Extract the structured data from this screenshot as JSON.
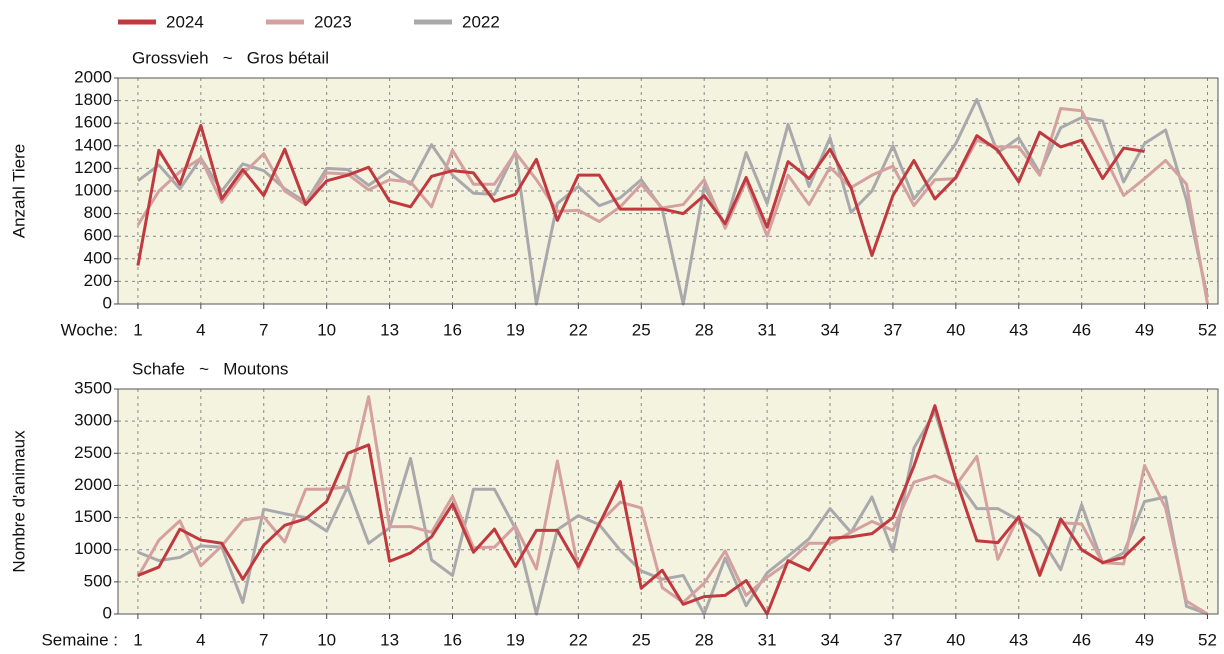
{
  "legend": [
    {
      "name": "2024",
      "color": "#c0393f"
    },
    {
      "name": "2023",
      "color": "#d4a0a0"
    },
    {
      "name": "2022",
      "color": "#a9a9ac"
    }
  ],
  "chart_data": [
    {
      "type": "line",
      "title": "Grossvieh   ~   Gros bétail",
      "y_label": "Anzahl Tiere",
      "x_label": "Woche:",
      "x": [
        1,
        2,
        3,
        4,
        5,
        6,
        7,
        8,
        9,
        10,
        11,
        12,
        13,
        14,
        15,
        16,
        17,
        18,
        19,
        20,
        21,
        22,
        23,
        24,
        25,
        26,
        27,
        28,
        29,
        30,
        31,
        32,
        33,
        34,
        35,
        36,
        37,
        38,
        39,
        40,
        41,
        42,
        43,
        44,
        45,
        46,
        47,
        48,
        49,
        50,
        51,
        52
      ],
      "xlim": [
        0.05,
        52.5
      ],
      "xticks": [
        1,
        4,
        7,
        10,
        13,
        16,
        19,
        22,
        25,
        28,
        31,
        34,
        37,
        40,
        43,
        46,
        49,
        52
      ],
      "ylim": [
        0,
        2000
      ],
      "yticks": [
        0,
        200,
        400,
        600,
        800,
        1000,
        1200,
        1400,
        1600,
        1800,
        2000
      ],
      "grid": true,
      "series": [
        {
          "name": "2024",
          "color": "#c0393f",
          "values": [
            340,
            1360,
            1060,
            1580,
            930,
            1190,
            960,
            1370,
            880,
            1090,
            1140,
            1210,
            910,
            860,
            1130,
            1180,
            1160,
            910,
            970,
            1280,
            740,
            1140,
            1140,
            840,
            840,
            840,
            800,
            960,
            710,
            1120,
            680,
            1260,
            1110,
            1370,
            1030,
            430,
            960,
            1270,
            930,
            1120,
            1490,
            1360,
            1080,
            1520,
            1390,
            1450,
            1110,
            1380,
            1350,
            null,
            null,
            null
          ]
        },
        {
          "name": "2023",
          "color": "#d4a0a0",
          "values": [
            700,
            1000,
            1170,
            1290,
            900,
            1150,
            1330,
            1000,
            880,
            1160,
            1150,
            1010,
            1100,
            1080,
            860,
            1360,
            1060,
            1060,
            1340,
            1100,
            820,
            830,
            730,
            860,
            1060,
            850,
            880,
            1100,
            670,
            1090,
            600,
            1140,
            880,
            1210,
            1030,
            1140,
            1220,
            870,
            1100,
            1110,
            1450,
            1390,
            1390,
            1140,
            1730,
            1710,
            1340,
            960,
            1110,
            1270,
            1060,
            0
          ]
        },
        {
          "name": "2022",
          "color": "#a9a9ac",
          "values": [
            1090,
            1230,
            1020,
            1290,
            1000,
            1240,
            1180,
            1020,
            900,
            1200,
            1190,
            1050,
            1180,
            1060,
            1410,
            1140,
            980,
            970,
            1350,
            0,
            890,
            1040,
            870,
            940,
            1100,
            840,
            0,
            1040,
            700,
            1340,
            890,
            1590,
            1040,
            1470,
            810,
            1000,
            1400,
            930,
            1160,
            1420,
            1810,
            1340,
            1470,
            1160,
            1560,
            1650,
            1620,
            1080,
            1420,
            1540,
            920,
            60
          ]
        }
      ]
    },
    {
      "type": "line",
      "title": "Schafe   ~   Moutons",
      "y_label": "Nombre d'animaux",
      "x_label": "Semaine :",
      "x": [
        1,
        2,
        3,
        4,
        5,
        6,
        7,
        8,
        9,
        10,
        11,
        12,
        13,
        14,
        15,
        16,
        17,
        18,
        19,
        20,
        21,
        22,
        23,
        24,
        25,
        26,
        27,
        28,
        29,
        30,
        31,
        32,
        33,
        34,
        35,
        36,
        37,
        38,
        39,
        40,
        41,
        42,
        43,
        44,
        45,
        46,
        47,
        48,
        49,
        50,
        51,
        52
      ],
      "xlim": [
        0.05,
        52.5
      ],
      "xticks": [
        1,
        4,
        7,
        10,
        13,
        16,
        19,
        22,
        25,
        28,
        31,
        34,
        37,
        40,
        43,
        46,
        49,
        52
      ],
      "ylim": [
        0,
        3500
      ],
      "yticks": [
        0,
        500,
        1000,
        1500,
        2000,
        2500,
        3000,
        3500
      ],
      "grid": true,
      "series": [
        {
          "color": "#c0393f",
          "values": [
            600,
            730,
            1320,
            1150,
            1100,
            540,
            1070,
            1380,
            1480,
            1750,
            2500,
            2630,
            820,
            950,
            1200,
            1710,
            960,
            1320,
            740,
            1300,
            1300,
            740,
            1400,
            2060,
            400,
            680,
            150,
            270,
            290,
            520,
            0,
            830,
            680,
            1180,
            1200,
            1250,
            1500,
            2300,
            3240,
            2100,
            1140,
            1110,
            1510,
            600,
            1480,
            1000,
            800,
            880,
            1200,
            null,
            null,
            null
          ]
        },
        {
          "color": "#d4a0a0",
          "values": [
            580,
            1150,
            1450,
            750,
            1060,
            1460,
            1510,
            1120,
            1940,
            1940,
            1980,
            3380,
            1360,
            1360,
            1270,
            1830,
            1030,
            1040,
            1370,
            700,
            2380,
            700,
            1420,
            1740,
            1650,
            410,
            180,
            480,
            980,
            290,
            570,
            800,
            1100,
            1100,
            1270,
            1440,
            1300,
            2050,
            2150,
            2000,
            2450,
            850,
            1520,
            640,
            1420,
            1400,
            800,
            780,
            2310,
            1650,
            200,
            0
          ]
        },
        {
          "color": "#a9a9ac",
          "values": [
            960,
            830,
            880,
            1060,
            1040,
            180,
            1630,
            1560,
            1500,
            1290,
            1980,
            1100,
            1340,
            2420,
            840,
            600,
            1940,
            1940,
            1330,
            0,
            1310,
            1530,
            1390,
            990,
            670,
            540,
            600,
            0,
            870,
            130,
            640,
            900,
            1170,
            1640,
            1270,
            1820,
            970,
            2580,
            3150,
            2100,
            1640,
            1640,
            1460,
            1210,
            690,
            1700,
            790,
            950,
            1750,
            1820,
            120,
            0
          ]
        }
      ]
    }
  ]
}
